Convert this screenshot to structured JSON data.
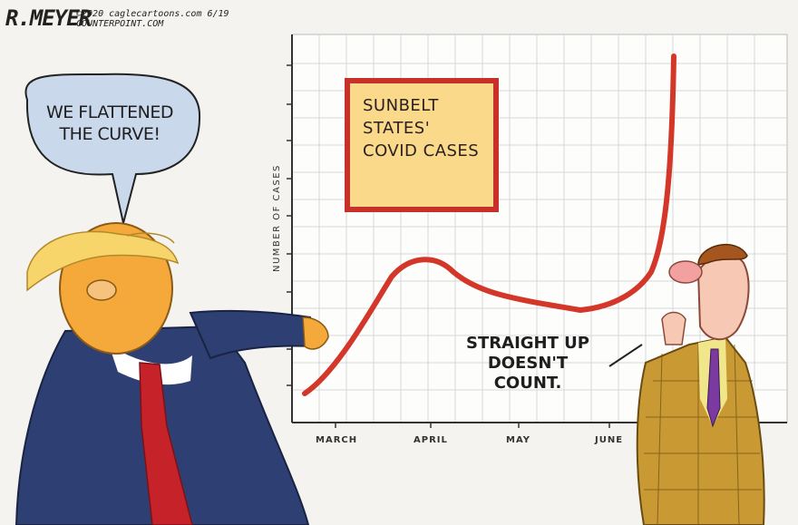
{
  "signature": {
    "name": "R.MEYER",
    "credit_line1": "©2020 caglecartoons.com 6/19",
    "credit_line2": "COUNTERPOINT.COM"
  },
  "speech_bubble": {
    "text": "WE FLATTENED THE CURVE!"
  },
  "chart_data": {
    "type": "line",
    "title": "SUNBELT STATES' COVID CASES",
    "ylabel": "NUMBER OF CASES",
    "xlabel": "",
    "categories": [
      "MARCH",
      "APRIL",
      "MAY",
      "JUNE"
    ]
  },
  "response": {
    "text": "STRAIGHT UP DOESN'T COUNT."
  },
  "colors": {
    "curve": "#d3372a",
    "title_box_fill": "#fbd98a",
    "title_box_border": "#c8312a",
    "suit_blue": "#2e3f73",
    "tie_red": "#c5222a",
    "skin_orange": "#f4a93a",
    "hair_yellow": "#f7d56b",
    "plaid_suit": "#c99a34",
    "bubble_fill": "#cad8ec"
  }
}
